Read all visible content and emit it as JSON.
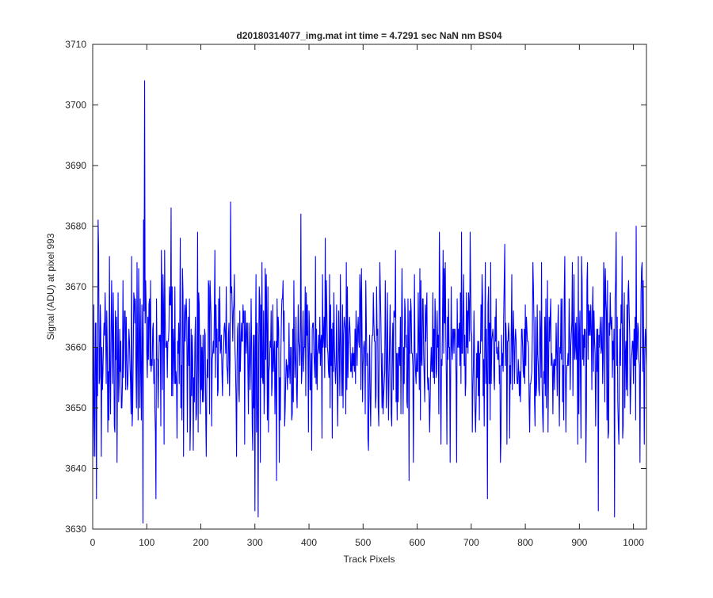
{
  "chart_data": {
    "type": "line",
    "title": "d20180314077_img.mat int time = 4.7291 sec  NaN nm BS04",
    "xlabel": "Track Pixels",
    "ylabel": "Signal (ADU) at pixel 993",
    "xlim": [
      0,
      1024
    ],
    "ylim": [
      3630,
      3710
    ],
    "xticks": [
      0,
      100,
      200,
      300,
      400,
      500,
      600,
      700,
      800,
      900,
      1000
    ],
    "yticks": [
      3630,
      3640,
      3650,
      3660,
      3670,
      3680,
      3690,
      3700,
      3710
    ],
    "grid": false,
    "legend": "none",
    "line_color": "#0000ff",
    "noise_note_hidden": "",
    "series": [
      {
        "x_start": 1,
        "x_step": 1,
        "mean": 3659.5,
        "std": 7.5,
        "n_points": 1024,
        "notable_points": [
          {
            "x": 2,
            "y": 3667
          },
          {
            "x": 7,
            "y": 3635
          },
          {
            "x": 10,
            "y": 3681
          },
          {
            "x": 16,
            "y": 3642
          },
          {
            "x": 93,
            "y": 3631
          },
          {
            "x": 94,
            "y": 3681
          },
          {
            "x": 96,
            "y": 3704
          },
          {
            "x": 117,
            "y": 3635
          },
          {
            "x": 145,
            "y": 3683
          },
          {
            "x": 255,
            "y": 3684
          },
          {
            "x": 300,
            "y": 3633
          },
          {
            "x": 306,
            "y": 3632
          },
          {
            "x": 340,
            "y": 3638
          },
          {
            "x": 385,
            "y": 3682
          },
          {
            "x": 585,
            "y": 3638
          },
          {
            "x": 730,
            "y": 3635
          },
          {
            "x": 935,
            "y": 3633
          },
          {
            "x": 965,
            "y": 3632
          },
          {
            "x": 1005,
            "y": 3680
          },
          {
            "x": 1020,
            "y": 3644
          }
        ]
      }
    ]
  }
}
